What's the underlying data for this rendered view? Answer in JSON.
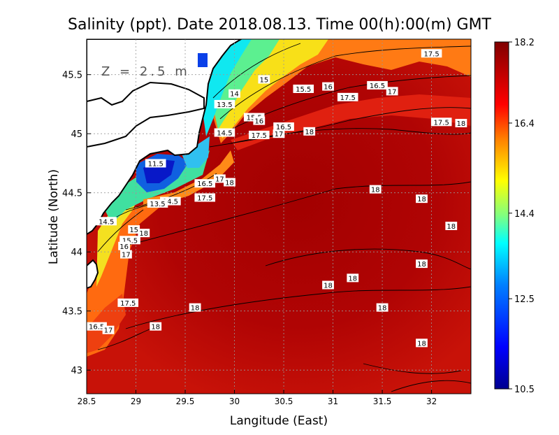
{
  "chart_data": {
    "type": "heatmap",
    "title": "Salinity (ppt). Date 2018.08.13. Time 00(h):00(m) GMT",
    "xlabel": "Langitude (East)",
    "ylabel": "Latitude (North)",
    "depth_label": "Z = 2.5 m",
    "xlim": [
      28.5,
      32.4
    ],
    "ylim": [
      42.8,
      45.8
    ],
    "x_ticks": [
      28.5,
      29,
      29.5,
      30,
      30.5,
      31,
      31.5,
      32
    ],
    "x_tick_labels": [
      "28.5",
      "29",
      "29.5",
      "30",
      "30.5",
      "31",
      "31.5",
      "32"
    ],
    "y_ticks": [
      43,
      43.5,
      44,
      44.5,
      45,
      45.5
    ],
    "y_tick_labels": [
      "43",
      "43.5",
      "44",
      "44.5",
      "45",
      "45.5"
    ],
    "grid": true,
    "colorbar": {
      "min": 10.5,
      "max": 18.2,
      "ticks": [
        18.2,
        16.4,
        14.4,
        12.5,
        10.5
      ],
      "tick_labels": [
        "18.2",
        "16.4",
        "14.4",
        "12.5",
        "10.5"
      ]
    },
    "contour_labels": [
      {
        "x": 32.0,
        "y": 45.68,
        "text": "17.5"
      },
      {
        "x": 30.3,
        "y": 45.46,
        "text": "15"
      },
      {
        "x": 30.7,
        "y": 45.38,
        "text": "15.5"
      },
      {
        "x": 30.95,
        "y": 45.4,
        "text": "16"
      },
      {
        "x": 31.45,
        "y": 45.41,
        "text": "16.5"
      },
      {
        "x": 31.6,
        "y": 45.36,
        "text": "17"
      },
      {
        "x": 31.15,
        "y": 45.31,
        "text": "17.5"
      },
      {
        "x": 30.0,
        "y": 45.34,
        "text": "14"
      },
      {
        "x": 29.9,
        "y": 45.25,
        "text": "13.5"
      },
      {
        "x": 30.2,
        "y": 45.14,
        "text": "15.5"
      },
      {
        "x": 30.25,
        "y": 45.11,
        "text": "16"
      },
      {
        "x": 30.5,
        "y": 45.06,
        "text": "16.5"
      },
      {
        "x": 30.45,
        "y": 45.0,
        "text": "17"
      },
      {
        "x": 30.76,
        "y": 45.02,
        "text": "18"
      },
      {
        "x": 29.9,
        "y": 45.01,
        "text": "14.5"
      },
      {
        "x": 30.25,
        "y": 44.99,
        "text": "17.5"
      },
      {
        "x": 32.1,
        "y": 45.1,
        "text": "17.5"
      },
      {
        "x": 32.3,
        "y": 45.09,
        "text": "18"
      },
      {
        "x": 29.2,
        "y": 44.75,
        "text": "11.5"
      },
      {
        "x": 29.7,
        "y": 44.58,
        "text": "16.5"
      },
      {
        "x": 29.85,
        "y": 44.62,
        "text": "17"
      },
      {
        "x": 29.95,
        "y": 44.59,
        "text": "18"
      },
      {
        "x": 31.43,
        "y": 44.53,
        "text": "18"
      },
      {
        "x": 29.7,
        "y": 44.46,
        "text": "17.5"
      },
      {
        "x": 29.35,
        "y": 44.43,
        "text": "14.5"
      },
      {
        "x": 29.22,
        "y": 44.41,
        "text": "13.5"
      },
      {
        "x": 31.9,
        "y": 44.45,
        "text": "18"
      },
      {
        "x": 28.7,
        "y": 44.26,
        "text": "14.5"
      },
      {
        "x": 28.98,
        "y": 44.19,
        "text": "15"
      },
      {
        "x": 29.08,
        "y": 44.16,
        "text": "18"
      },
      {
        "x": 28.94,
        "y": 44.1,
        "text": "15.5"
      },
      {
        "x": 28.88,
        "y": 44.05,
        "text": "16"
      },
      {
        "x": 28.9,
        "y": 43.98,
        "text": "17"
      },
      {
        "x": 32.2,
        "y": 44.22,
        "text": "18"
      },
      {
        "x": 31.9,
        "y": 43.9,
        "text": "18"
      },
      {
        "x": 31.2,
        "y": 43.78,
        "text": "18"
      },
      {
        "x": 30.95,
        "y": 43.72,
        "text": "18"
      },
      {
        "x": 28.92,
        "y": 43.57,
        "text": "17.5"
      },
      {
        "x": 29.6,
        "y": 43.53,
        "text": "18"
      },
      {
        "x": 31.5,
        "y": 43.53,
        "text": "18"
      },
      {
        "x": 29.2,
        "y": 43.37,
        "text": "18"
      },
      {
        "x": 28.6,
        "y": 43.37,
        "text": "16.5"
      },
      {
        "x": 28.72,
        "y": 43.34,
        "text": "17"
      },
      {
        "x": 31.9,
        "y": 43.23,
        "text": "18"
      }
    ]
  },
  "colors": {
    "background": "#ffffff",
    "land": "#ffffff",
    "coastline": "#000000",
    "sea_base": "#c8100a",
    "sea_deep": "#a80000",
    "colormap": [
      "#00008f",
      "#0000ff",
      "#0080ff",
      "#00ffff",
      "#80ff80",
      "#ffff00",
      "#ff8000",
      "#ff0000",
      "#800000"
    ]
  }
}
